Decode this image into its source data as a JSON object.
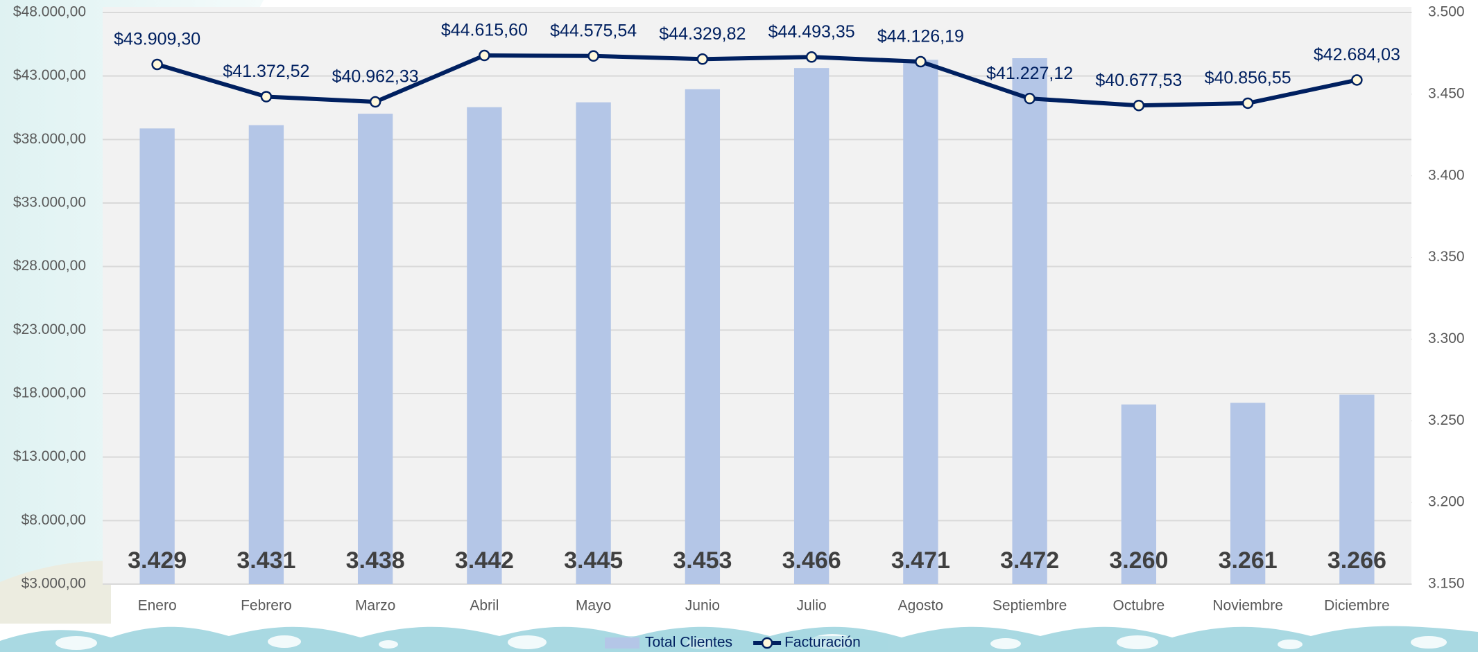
{
  "chart_data": {
    "type": "bar",
    "categories": [
      "Enero",
      "Febrero",
      "Marzo",
      "Abril",
      "Mayo",
      "Junio",
      "Julio",
      "Agosto",
      "Septiembre",
      "Octubre",
      "Noviembre",
      "Diciembre"
    ],
    "series": [
      {
        "name": "Total Clientes",
        "color": "#b4c6e7",
        "axis": "y2",
        "values": [
          3429,
          3431,
          3438,
          3442,
          3445,
          3453,
          3466,
          3471,
          3472,
          3260,
          3261,
          3266
        ],
        "value_labels": [
          "3.429",
          "3.431",
          "3.438",
          "3.442",
          "3.445",
          "3.453",
          "3.466",
          "3.471",
          "3.472",
          "3.260",
          "3.261",
          "3.266"
        ]
      },
      {
        "name": "Facturación",
        "color": "#002060",
        "type": "line",
        "values": [
          43909.3,
          41372.52,
          40962.33,
          44615.6,
          44575.54,
          44329.82,
          44493.35,
          44126.19,
          41227.12,
          40677.53,
          40856.55,
          42684.03
        ],
        "value_labels": [
          "$43.909,30",
          "$41.372,52",
          "$40.962,33",
          "$44.615,60",
          "$44.575,54",
          "$44.329,82",
          "$44.493,35",
          "$44.126,19",
          "$41.227,12",
          "$40.677,53",
          "$40.856,55",
          "$42.684,03"
        ]
      }
    ],
    "ylim": [
      3000,
      48000
    ],
    "yticks": [
      {
        "value": 3000,
        "label": "$3.000,00"
      },
      {
        "value": 8000,
        "label": "$8.000,00"
      },
      {
        "value": 13000,
        "label": "$13.000,00"
      },
      {
        "value": 18000,
        "label": "$18.000,00"
      },
      {
        "value": 23000,
        "label": "$23.000,00"
      },
      {
        "value": 28000,
        "label": "$28.000,00"
      },
      {
        "value": 33000,
        "label": "$33.000,00"
      },
      {
        "value": 38000,
        "label": "$38.000,00"
      },
      {
        "value": 43000,
        "label": "$43.000,00"
      },
      {
        "value": 48000,
        "label": "$48.000,00"
      }
    ],
    "y2lim": [
      3150,
      3500
    ],
    "y2ticks": [
      {
        "value": 3150,
        "label": "3.150"
      },
      {
        "value": 3200,
        "label": "3.200"
      },
      {
        "value": 3250,
        "label": "3.250"
      },
      {
        "value": 3300,
        "label": "3.300"
      },
      {
        "value": 3350,
        "label": "3.350"
      },
      {
        "value": 3400,
        "label": "3.400"
      },
      {
        "value": 3450,
        "label": "3.450"
      },
      {
        "value": 3500,
        "label": "3.500"
      }
    ],
    "grid": true,
    "legend": "bottom"
  }
}
